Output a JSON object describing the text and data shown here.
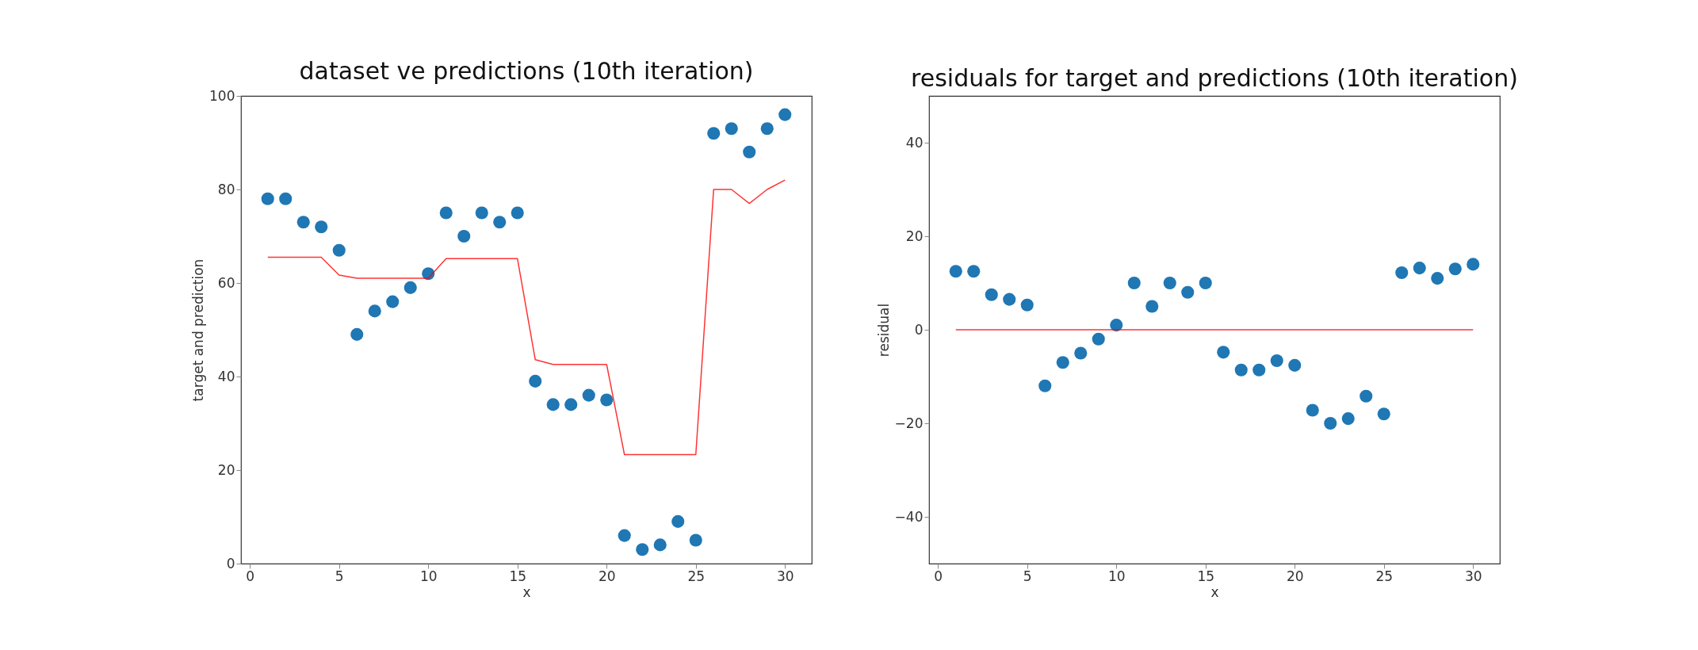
{
  "chart_data": [
    {
      "type": "scatter",
      "title": "dataset ve predictions (10th iteration)",
      "xlabel": "x",
      "ylabel": "target and prediction",
      "xlim": [
        -0.5,
        31.5
      ],
      "ylim": [
        0,
        100
      ],
      "xticks": [
        0,
        5,
        10,
        15,
        20,
        25,
        30
      ],
      "yticks": [
        0,
        20,
        40,
        60,
        80,
        100
      ],
      "grid": false,
      "x": [
        1,
        2,
        3,
        4,
        5,
        6,
        7,
        8,
        9,
        10,
        11,
        12,
        13,
        14,
        15,
        16,
        17,
        18,
        19,
        20,
        21,
        22,
        23,
        24,
        25,
        26,
        27,
        28,
        29,
        30
      ],
      "series": [
        {
          "color": "#1f77b4",
          "marker": "circle",
          "values": [
            78,
            78,
            73,
            72,
            67,
            49,
            54,
            56,
            59,
            62,
            75,
            70,
            75,
            73,
            75,
            39,
            34,
            34,
            36,
            35,
            6,
            3,
            4,
            9,
            5,
            92,
            93,
            88,
            93,
            96
          ]
        },
        {
          "type": "line",
          "color": "#ff0000",
          "line_style": "solid",
          "values": [
            65.5,
            65.5,
            65.5,
            65.5,
            61.7,
            61,
            61,
            61,
            61,
            61,
            65.2,
            65.2,
            65.2,
            65.2,
            65.2,
            43.6,
            42.6,
            42.6,
            42.6,
            42.6,
            23.3,
            23.3,
            23.3,
            23.3,
            23.3,
            80,
            80,
            77,
            80,
            82
          ]
        }
      ]
    },
    {
      "type": "scatter",
      "title": "residuals for target and predictions (10th iteration)",
      "xlabel": "x",
      "ylabel": "residual",
      "xlim": [
        -0.5,
        31.5
      ],
      "ylim": [
        -50,
        50
      ],
      "xticks": [
        0,
        5,
        10,
        15,
        20,
        25,
        30
      ],
      "yticks": [
        {
          "value": -40,
          "label": "−40"
        },
        {
          "value": -20,
          "label": "−20"
        },
        0,
        20,
        40
      ],
      "grid": false,
      "x": [
        1,
        2,
        3,
        4,
        5,
        6,
        7,
        8,
        9,
        10,
        11,
        12,
        13,
        14,
        15,
        16,
        17,
        18,
        19,
        20,
        21,
        22,
        23,
        24,
        25,
        26,
        27,
        28,
        29,
        30
      ],
      "series": [
        {
          "color": "#1f77b4",
          "marker": "circle",
          "values": [
            12.5,
            12.5,
            7.5,
            6.5,
            5.3,
            -12,
            -7,
            -5,
            -2,
            1,
            10,
            5,
            10,
            8,
            10,
            -4.8,
            -8.6,
            -8.6,
            -6.6,
            -7.6,
            -17.2,
            -20,
            -19,
            -14.2,
            -18,
            12.2,
            13.2,
            11,
            13,
            14
          ]
        },
        {
          "type": "line",
          "color": "#ff0000",
          "line_style": "solid",
          "values": [
            0,
            0,
            0,
            0,
            0,
            0,
            0,
            0,
            0,
            0,
            0,
            0,
            0,
            0,
            0,
            0,
            0,
            0,
            0,
            0,
            0,
            0,
            0,
            0,
            0,
            0,
            0,
            0,
            0,
            0
          ]
        }
      ]
    }
  ]
}
